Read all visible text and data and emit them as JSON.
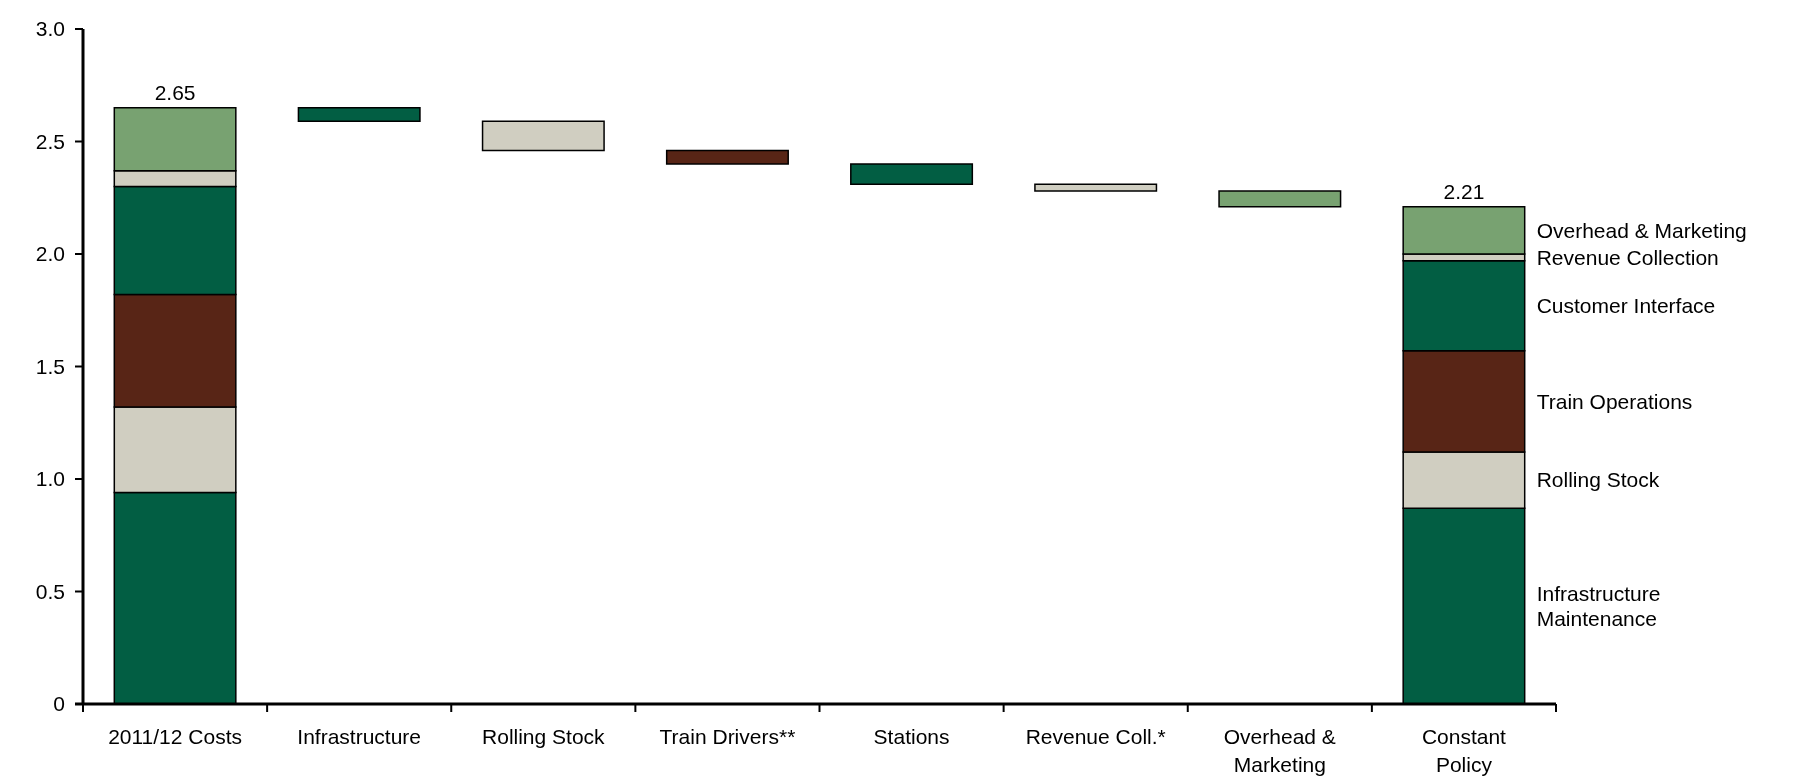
{
  "chart_data": {
    "type": "bar",
    "stacked": true,
    "categories": [
      "2011/12 Costs",
      "Infrastructure",
      "Rolling Stock",
      "Train Drivers**",
      "Stations",
      "Revenue Coll.*",
      "Overhead &\nMarketing",
      "Constant\nPolicy"
    ],
    "series": [
      {
        "name": "Infrastructure\nMaintenance",
        "color": "#025e43",
        "values": [
          0.94,
          0.06,
          null,
          null,
          null,
          null,
          null,
          0.87
        ],
        "base": [
          null,
          2.59,
          null,
          null,
          null,
          null,
          null,
          null
        ]
      },
      {
        "name": "Rolling Stock",
        "color": "#d0cec1",
        "values": [
          0.38,
          null,
          0.13,
          null,
          null,
          null,
          null,
          0.25
        ],
        "base": [
          null,
          null,
          2.46,
          null,
          null,
          null,
          null,
          null
        ]
      },
      {
        "name": "Train Operations",
        "color": "#582516",
        "values": [
          0.5,
          null,
          null,
          0.06,
          null,
          null,
          null,
          0.45
        ],
        "base": [
          null,
          null,
          null,
          2.4,
          null,
          null,
          null,
          null
        ]
      },
      {
        "name": "Customer Interface",
        "color": "#025e43",
        "values": [
          0.48,
          null,
          null,
          null,
          0.09,
          null,
          null,
          0.4
        ],
        "base": [
          null,
          null,
          null,
          null,
          2.31,
          null,
          null,
          null
        ]
      },
      {
        "name": "Revenue Collection",
        "color": "#d0cec1",
        "values": [
          0.07,
          null,
          null,
          null,
          null,
          0.03,
          null,
          0.03
        ],
        "base": [
          null,
          null,
          null,
          null,
          null,
          2.28,
          null,
          null
        ]
      },
      {
        "name": "Overhead & Marketing",
        "color": "#78a271",
        "values": [
          0.28,
          null,
          null,
          null,
          null,
          null,
          0.07,
          0.21
        ],
        "base": [
          null,
          null,
          null,
          null,
          null,
          null,
          2.21,
          null
        ]
      }
    ],
    "totals": [
      "2.65",
      null,
      null,
      null,
      null,
      null,
      null,
      "2.21"
    ],
    "ylim": [
      0,
      3
    ],
    "yticks": [
      0,
      0.5,
      {
        "value": 1,
        "label": "1.0"
      },
      1.5,
      {
        "value": 2,
        "label": "2.0"
      },
      2.5,
      {
        "value": 3,
        "label": "3.0"
      }
    ],
    "legend": "right"
  }
}
